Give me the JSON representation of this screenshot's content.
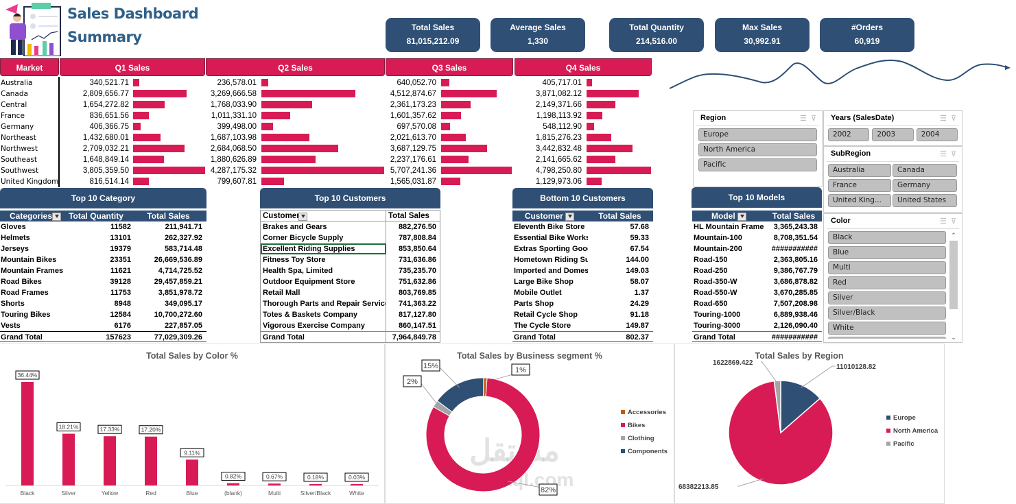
{
  "header": {
    "title_line1": "Sales Dashboard",
    "title_line2": "Summary"
  },
  "kpis": [
    {
      "label": "Total Sales",
      "value": "81,015,212.09"
    },
    {
      "label": "Average Sales",
      "value": "1,330"
    },
    {
      "label": "Total Quantity",
      "value": "214,516.00"
    },
    {
      "label": "Max Sales",
      "value": "30,992.91"
    },
    {
      "label": "#Orders",
      "value": "60,919"
    }
  ],
  "quarters": {
    "market_header": "Market",
    "headers": [
      "Q1 Sales",
      "Q2 Sales",
      "Q3 Sales",
      "Q4 Sales"
    ],
    "bar_color": "#d81b55",
    "rows": [
      {
        "market": "Australia",
        "q": [
          "340,521.71",
          "236,578.01",
          "640,052.70",
          "405,717.01"
        ],
        "v": [
          340521.71,
          236578.01,
          640052.7,
          405717.01
        ]
      },
      {
        "market": "Canada",
        "q": [
          "2,809,656.77",
          "3,269,666.58",
          "4,512,874.67",
          "3,871,082.12"
        ],
        "v": [
          2809656.77,
          3269666.58,
          4512874.67,
          3871082.12
        ]
      },
      {
        "market": "Central",
        "q": [
          "1,654,272.82",
          "1,768,033.90",
          "2,361,173.23",
          "2,149,371.66"
        ],
        "v": [
          1654272.82,
          1768033.9,
          2361173.23,
          2149371.66
        ]
      },
      {
        "market": "France",
        "q": [
          "836,651.56",
          "1,011,331.10",
          "1,601,357.62",
          "1,198,113.92"
        ],
        "v": [
          836651.56,
          1011331.1,
          1601357.62,
          1198113.92
        ]
      },
      {
        "market": "Germany",
        "q": [
          "406,366.75",
          "399,498.00",
          "697,570.08",
          "548,112.90"
        ],
        "v": [
          406366.75,
          399498.0,
          697570.08,
          548112.9
        ]
      },
      {
        "market": "Northeast",
        "q": [
          "1,432,680.01",
          "1,687,103.98",
          "2,021,613.70",
          "1,815,276.23"
        ],
        "v": [
          1432680.01,
          1687103.98,
          2021613.7,
          1815276.23
        ]
      },
      {
        "market": "Northwest",
        "q": [
          "2,709,032.21",
          "2,684,068.50",
          "3,687,129.75",
          "3,442,832.48"
        ],
        "v": [
          2709032.21,
          2684068.5,
          3687129.75,
          3442832.48
        ]
      },
      {
        "market": "Southeast",
        "q": [
          "1,648,849.14",
          "1,880,626.89",
          "2,237,176.61",
          "2,141,665.62"
        ],
        "v": [
          1648849.14,
          1880626.89,
          2237176.61,
          2141665.62
        ]
      },
      {
        "market": "Southwest",
        "q": [
          "3,805,359.50",
          "4,287,175.32",
          "5,707,241.36",
          "4,798,250.80"
        ],
        "v": [
          3805359.5,
          4287175.32,
          5707241.36,
          4798250.8
        ]
      },
      {
        "market": "United Kingdom",
        "q": [
          "816,514.14",
          "799,607.81",
          "1,565,031.87",
          "1,129,973.06"
        ],
        "v": [
          816514.14,
          799607.81,
          1565031.87,
          1129973.06
        ]
      }
    ]
  },
  "top_category": {
    "title": "Top 10 Category",
    "columns": [
      "Categories",
      "Total Quantity",
      "Total Sales"
    ],
    "rows": [
      [
        "Gloves",
        "11582",
        "211,941.71"
      ],
      [
        "Helmets",
        "13101",
        "262,327.92"
      ],
      [
        "Jerseys",
        "19379",
        "583,714.48"
      ],
      [
        "Mountain Bikes",
        "23351",
        "26,669,536.89"
      ],
      [
        "Mountain Frames",
        "11621",
        "4,714,725.52"
      ],
      [
        "Road Bikes",
        "39128",
        "29,457,859.21"
      ],
      [
        "Road Frames",
        "11753",
        "3,851,978.72"
      ],
      [
        "Shorts",
        "8948",
        "349,095.17"
      ],
      [
        "Touring Bikes",
        "12584",
        "10,700,272.60"
      ],
      [
        "Vests",
        "6176",
        "227,857.05"
      ]
    ],
    "total": [
      "Grand Total",
      "157623",
      "77,029,309.26"
    ]
  },
  "top_customers": {
    "title": "Top 10 Customers",
    "columns": [
      "Customer",
      "Total Sales"
    ],
    "rows": [
      [
        "Brakes and Gears",
        "882,276.50"
      ],
      [
        "Corner Bicycle Supply",
        "787,808.84"
      ],
      [
        "Excellent Riding Supplies",
        "853,850.64"
      ],
      [
        "Fitness Toy Store",
        "731,636.86"
      ],
      [
        "Health Spa, Limited",
        "735,235.70"
      ],
      [
        "Outdoor Equipment Store",
        "751,632.86"
      ],
      [
        "Retail Mall",
        "803,769.85"
      ],
      [
        "Thorough Parts and Repair Services",
        "741,363.22"
      ],
      [
        "Totes & Baskets Company",
        "817,127.80"
      ],
      [
        "Vigorous Exercise Company",
        "860,147.51"
      ]
    ],
    "total": [
      "Grand Total",
      "7,964,849.78"
    ]
  },
  "bottom_customers": {
    "title": "Bottom 10 Customers",
    "columns": [
      "Customer",
      "Total Sales"
    ],
    "rows": [
      [
        "Eleventh Bike Store",
        "57.68"
      ],
      [
        "Essential Bike Works",
        "59.33"
      ],
      [
        "Extras Sporting Good",
        "67.54"
      ],
      [
        "Hometown Riding Su",
        "144.00"
      ],
      [
        "Imported and Domes",
        "149.03"
      ],
      [
        "Large Bike Shop",
        "58.07"
      ],
      [
        "Mobile Outlet",
        "1.37"
      ],
      [
        "Parts Shop",
        "24.29"
      ],
      [
        "Retail Cycle Shop",
        "91.18"
      ],
      [
        "The Cycle Store",
        "149.87"
      ]
    ],
    "total": [
      "Grand Total",
      "802.37"
    ]
  },
  "top_models": {
    "title": "Top 10 Models",
    "columns": [
      "Model",
      "Total Sales"
    ],
    "rows": [
      [
        "HL Mountain Frame",
        "3,365,243.38"
      ],
      [
        "Mountain-100",
        "8,708,351.54"
      ],
      [
        "Mountain-200",
        "###########"
      ],
      [
        "Road-150",
        "2,363,805.16"
      ],
      [
        "Road-250",
        "9,386,767.79"
      ],
      [
        "Road-350-W",
        "3,686,878.82"
      ],
      [
        "Road-550-W",
        "3,670,285.85"
      ],
      [
        "Road-650",
        "7,507,208.98"
      ],
      [
        "Touring-1000",
        "6,889,938.46"
      ],
      [
        "Touring-3000",
        "2,126,090.40"
      ]
    ],
    "total": [
      "Grand Total",
      "###########"
    ]
  },
  "slicers": {
    "region": {
      "title": "Region",
      "items": [
        "Europe",
        "North America",
        "Pacific"
      ]
    },
    "years": {
      "title": "Years (SalesDate)",
      "items": [
        "2002",
        "2003",
        "2004"
      ]
    },
    "subregion": {
      "title": "SubRegion",
      "items": [
        "Australia",
        "Canada",
        "France",
        "Germany",
        "United King...",
        "United States"
      ]
    },
    "color": {
      "title": "Color",
      "items": [
        "Black",
        "Blue",
        "Multi",
        "Red",
        "Silver",
        "Silver/Black",
        "White"
      ]
    }
  },
  "chart_data": [
    {
      "type": "bar",
      "title": "Total Sales by Color %",
      "categories": [
        "Black",
        "Silver",
        "Yellow",
        "Red",
        "Blue",
        "(blank)",
        "Multi",
        "Silver/Black",
        "White"
      ],
      "values": [
        36.44,
        18.21,
        17.33,
        17.2,
        9.11,
        0.82,
        0.67,
        0.18,
        0.03
      ],
      "labels": [
        "36.44%",
        "18.21%",
        "17.33%",
        "17.20%",
        "9.11%",
        "0.82%",
        "0.67%",
        "0.18%",
        "0.03%"
      ],
      "color": "#d81b55",
      "xlabel": "",
      "ylabel": "",
      "ylim": [
        0,
        40
      ],
      "grid": false
    },
    {
      "type": "pie",
      "subtype": "donut",
      "title": "Total Sales by Business segment %",
      "categories": [
        "Accessories",
        "Bikes",
        "Clothing",
        "Components"
      ],
      "values": [
        1,
        82,
        2,
        15
      ],
      "labels": [
        "1%",
        "82%",
        "2%",
        "15%"
      ],
      "colors": [
        "#c55a11",
        "#d81b55",
        "#a5a5a5",
        "#2f4f74"
      ],
      "legend": "right"
    },
    {
      "type": "pie",
      "title": "Total  Sales by Region",
      "categories": [
        "Europe",
        "North America",
        "Pacific"
      ],
      "values": [
        11010128.82,
        68382213.85,
        1622869.422
      ],
      "labels": [
        "11010128.82",
        "68382213.85",
        "1622869.422"
      ],
      "colors": [
        "#2f4f74",
        "#d81b55",
        "#a5a5a5"
      ],
      "legend": "right"
    }
  ],
  "watermark": {
    "arabic": "مستقل",
    "latin": "mostaql.com"
  }
}
